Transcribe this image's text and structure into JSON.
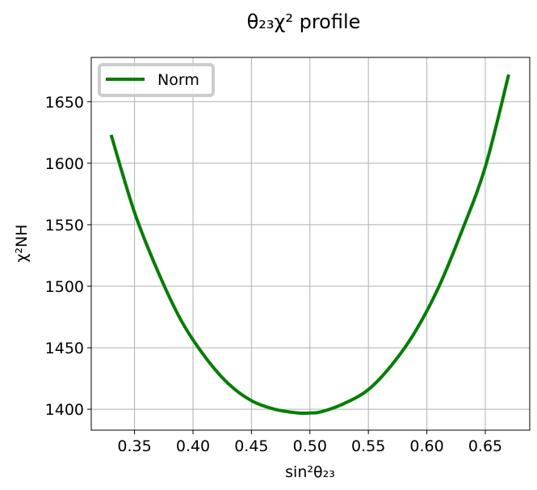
{
  "chart_data": {
    "type": "line",
    "title": "θ₂₃χ² profile",
    "xlabel": "sin²θ₂₃",
    "ylabel": "χ²NH",
    "xlim": [
      0.313,
      0.688
    ],
    "ylim": [
      1383,
      1686
    ],
    "xticks": [
      0.35,
      0.4,
      0.45,
      0.5,
      0.55,
      0.6,
      0.65
    ],
    "xtick_labels": [
      "0.35",
      "0.40",
      "0.45",
      "0.50",
      "0.55",
      "0.60",
      "0.65"
    ],
    "yticks": [
      1400,
      1450,
      1500,
      1550,
      1600,
      1650
    ],
    "ytick_labels": [
      "1400",
      "1450",
      "1500",
      "1550",
      "1600",
      "1650"
    ],
    "grid": true,
    "legend_position": "top-left",
    "series": [
      {
        "name": "Norm",
        "color": "#008000",
        "x": [
          0.33,
          0.35,
          0.37,
          0.39,
          0.41,
          0.43,
          0.45,
          0.47,
          0.49,
          0.5,
          0.51,
          0.53,
          0.55,
          0.57,
          0.59,
          0.61,
          0.63,
          0.65,
          0.67
        ],
        "y": [
          1623,
          1560,
          1512,
          1472,
          1443,
          1421,
          1407,
          1400,
          1397,
          1397,
          1398,
          1405,
          1416,
          1436,
          1463,
          1499,
          1545,
          1597,
          1672
        ]
      }
    ]
  }
}
